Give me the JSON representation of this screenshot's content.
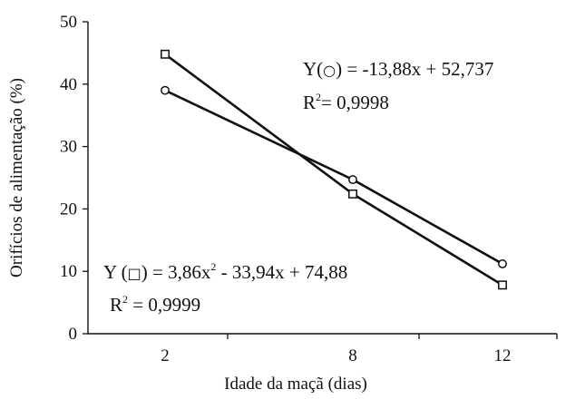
{
  "chart_data": {
    "type": "line",
    "xlabel": "Idade da maçã (dias)",
    "ylabel": "Orifícios de alimentação (%)",
    "categories": [
      "2",
      "8",
      "12"
    ],
    "ylim": [
      0,
      50
    ],
    "yticks": [
      "0",
      "10",
      "20",
      "30",
      "40",
      "50"
    ],
    "grid": false,
    "series": [
      {
        "marker": "circle",
        "values": [
          39.0,
          24.7,
          11.2
        ]
      },
      {
        "marker": "square",
        "values": [
          44.8,
          22.4,
          7.8
        ]
      }
    ],
    "annotations": {
      "circle": {
        "lhs": "Y(",
        "rhs": ") = -13,88x + 52,737",
        "r2_prefix": "R",
        "r2_exp": "2",
        "r2_value": "= 0,9998"
      },
      "square": {
        "lhs": "Y (",
        "rhs": ") = 3,86x",
        "rhs_exp": "2",
        "rhs_tail": " - 33,94x + 74,88",
        "r2_prefix": "R",
        "r2_exp": "2",
        "r2_value": " = 0,9999"
      }
    }
  }
}
